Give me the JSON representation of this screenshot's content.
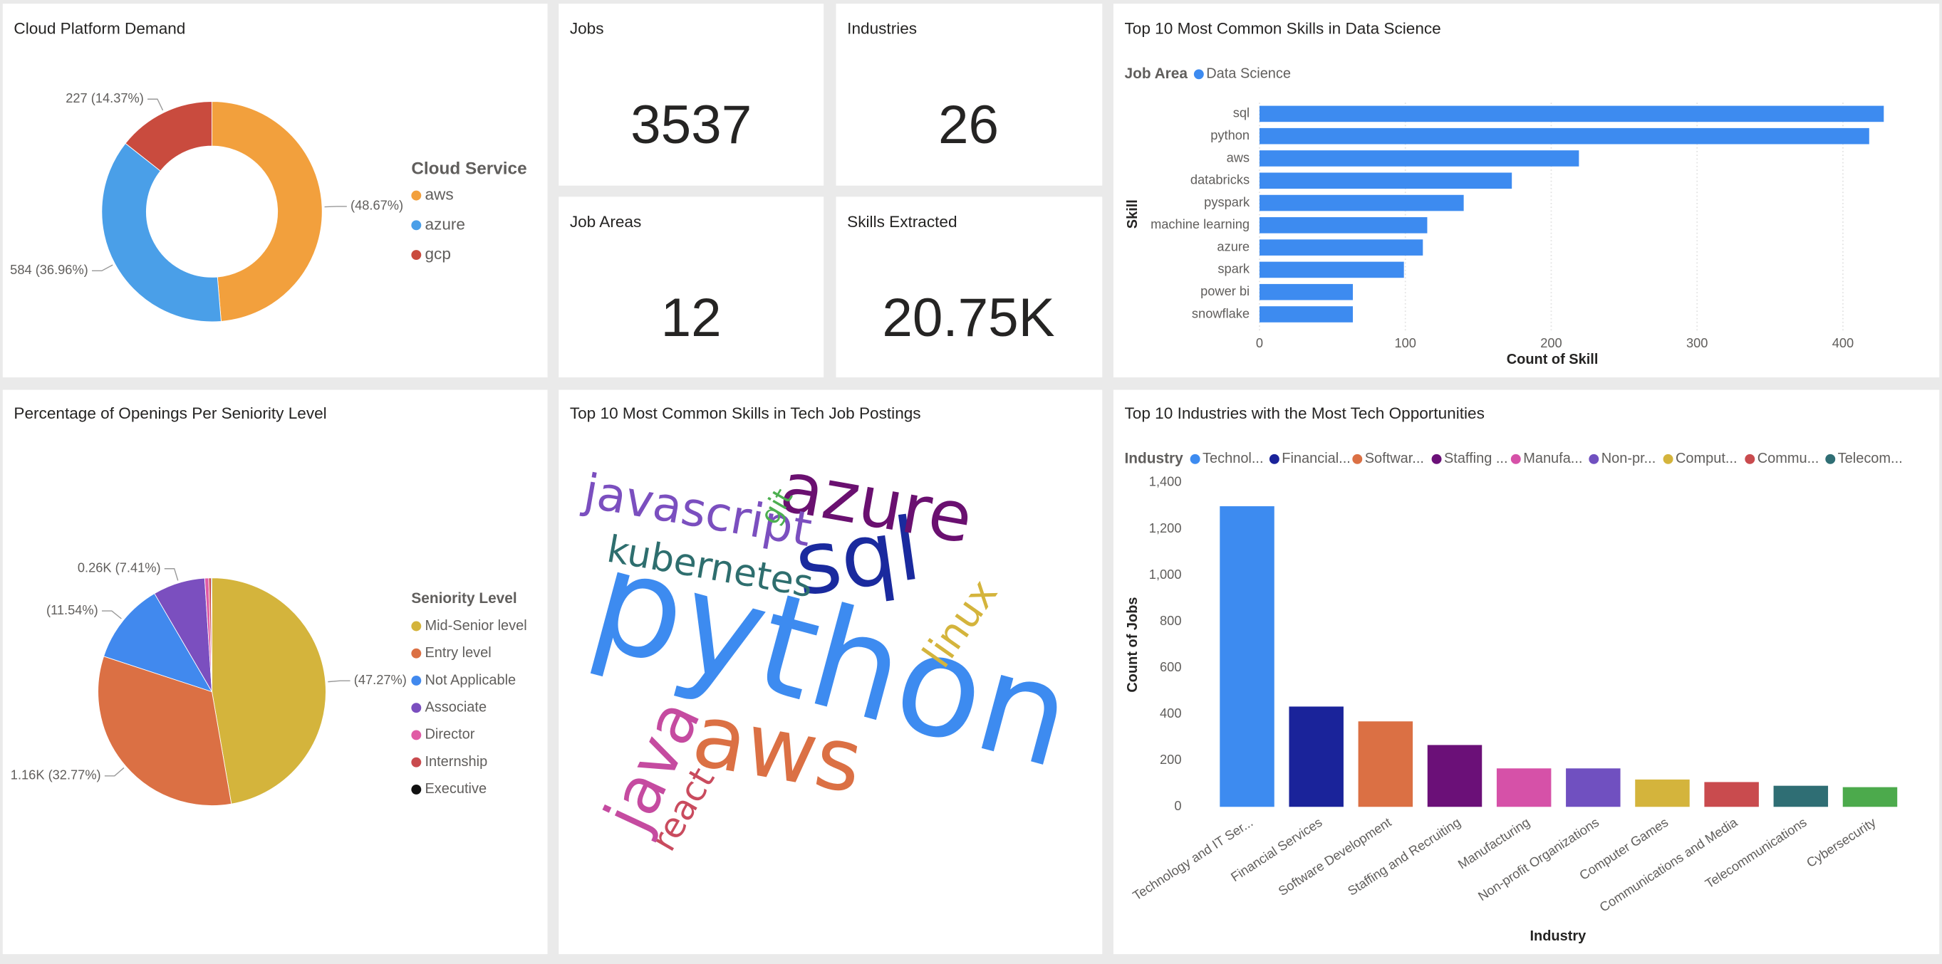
{
  "cards": [
    {
      "title": "Jobs",
      "value": 3537
    },
    {
      "title": "Industries",
      "value": 26
    },
    {
      "title": "Job Areas",
      "value": 12
    },
    {
      "title": "Skills Extracted",
      "value": "20.75K"
    }
  ],
  "chart_data": [
    {
      "type": "donut",
      "title": "Cloud Platform Demand",
      "legend_title": "Cloud Service",
      "categories": [
        "aws",
        "azure",
        "gcp"
      ],
      "values": [
        769,
        584,
        227
      ],
      "value_labels": [
        "(48.67%)",
        "584 (36.96%)",
        "227 (14.37%)"
      ],
      "colors": [
        "#f2a03d",
        "#4a9fe8",
        "#c94b3e"
      ]
    },
    {
      "type": "hbar",
      "title": "Top 10 Most Common Skills in Data Science",
      "legend_title": "Job Area",
      "x_label": "Count of Skill",
      "y_label": "Skill",
      "categories": [
        "sql",
        "python",
        "aws",
        "databricks",
        "pyspark",
        "machine learning",
        "azure",
        "spark",
        "power bi",
        "snowflake"
      ],
      "series": [
        {
          "name": "Data Science",
          "color": "#3d8bf0",
          "values": [
            428,
            418,
            219,
            173,
            140,
            115,
            112,
            99,
            64,
            64
          ]
        }
      ],
      "xlim": [
        0,
        444
      ],
      "xticks": [
        0,
        100,
        200,
        300,
        400
      ],
      "grid": true
    },
    {
      "type": "pie",
      "title": "Percentage of Openings Per Seniority Level",
      "legend_title": "Seniority Level",
      "categories": [
        "Mid-Senior level",
        "Entry level",
        "Not Applicable",
        "Associate",
        "Director",
        "Internship",
        "Executive"
      ],
      "values": [
        1672,
        1159,
        408,
        262,
        20,
        12,
        4
      ],
      "value_labels": [
        "(47.27%)",
        "1.16K (32.77%)",
        "(11.54%)",
        "0.26K (7.41%)",
        null,
        null,
        null
      ],
      "colors": [
        "#d4b43c",
        "#db7044",
        "#4189ee",
        "#7b4fbf",
        "#e05ba5",
        "#c94b4e",
        "#111111"
      ]
    },
    {
      "type": "wordcloud",
      "title": "Top 10 Most Common Skills in Tech Job Postings",
      "words": [
        "python",
        "sql",
        "azure",
        "aws",
        "javascript",
        "kubernetes",
        "java",
        "react",
        "linux",
        "git"
      ],
      "colors": [
        "#3d8bf0",
        "#1a2a9e",
        "#6a1070",
        "#db7044",
        "#7b4fbf",
        "#2e6e6e",
        "#c54ba0",
        "#c94b5e",
        "#d4b43c",
        "#4caf50"
      ]
    },
    {
      "type": "column",
      "title": "Top 10 Industries with the Most Tech Opportunities",
      "legend_title": "Industry",
      "legend_labels": [
        "Technol...",
        "Financial...",
        "Softwar...",
        "Staffing ...",
        "Manufa...",
        "Non-pr...",
        "Comput...",
        "Commu...",
        "Telecom..."
      ],
      "x_label": "Industry",
      "y_label": "Count of Jobs",
      "categories": [
        "Technology and IT Ser...",
        "Financial Services",
        "Software Development",
        "Staffing and Recruiting",
        "Manufacturing",
        "Non-profit Organizations",
        "Computer Games",
        "Communications and Media",
        "Telecommunications",
        "Cybersecurity"
      ],
      "values": [
        1298,
        433,
        369,
        267,
        166,
        166,
        118,
        107,
        91,
        85
      ],
      "colors": [
        "#3d8bf0",
        "#1a239a",
        "#db7044",
        "#6b1078",
        "#d651a8",
        "#7050c0",
        "#d4b43c",
        "#c94b4e",
        "#2f6e74",
        "#4caa4c"
      ],
      "ylim": [
        0,
        1400
      ],
      "yticks": [
        0,
        200,
        400,
        600,
        800,
        {
          "value": 1000,
          "label": "1,000"
        },
        {
          "value": 1200,
          "label": "1,200"
        },
        {
          "value": 1400,
          "label": "1,400"
        }
      ]
    }
  ]
}
